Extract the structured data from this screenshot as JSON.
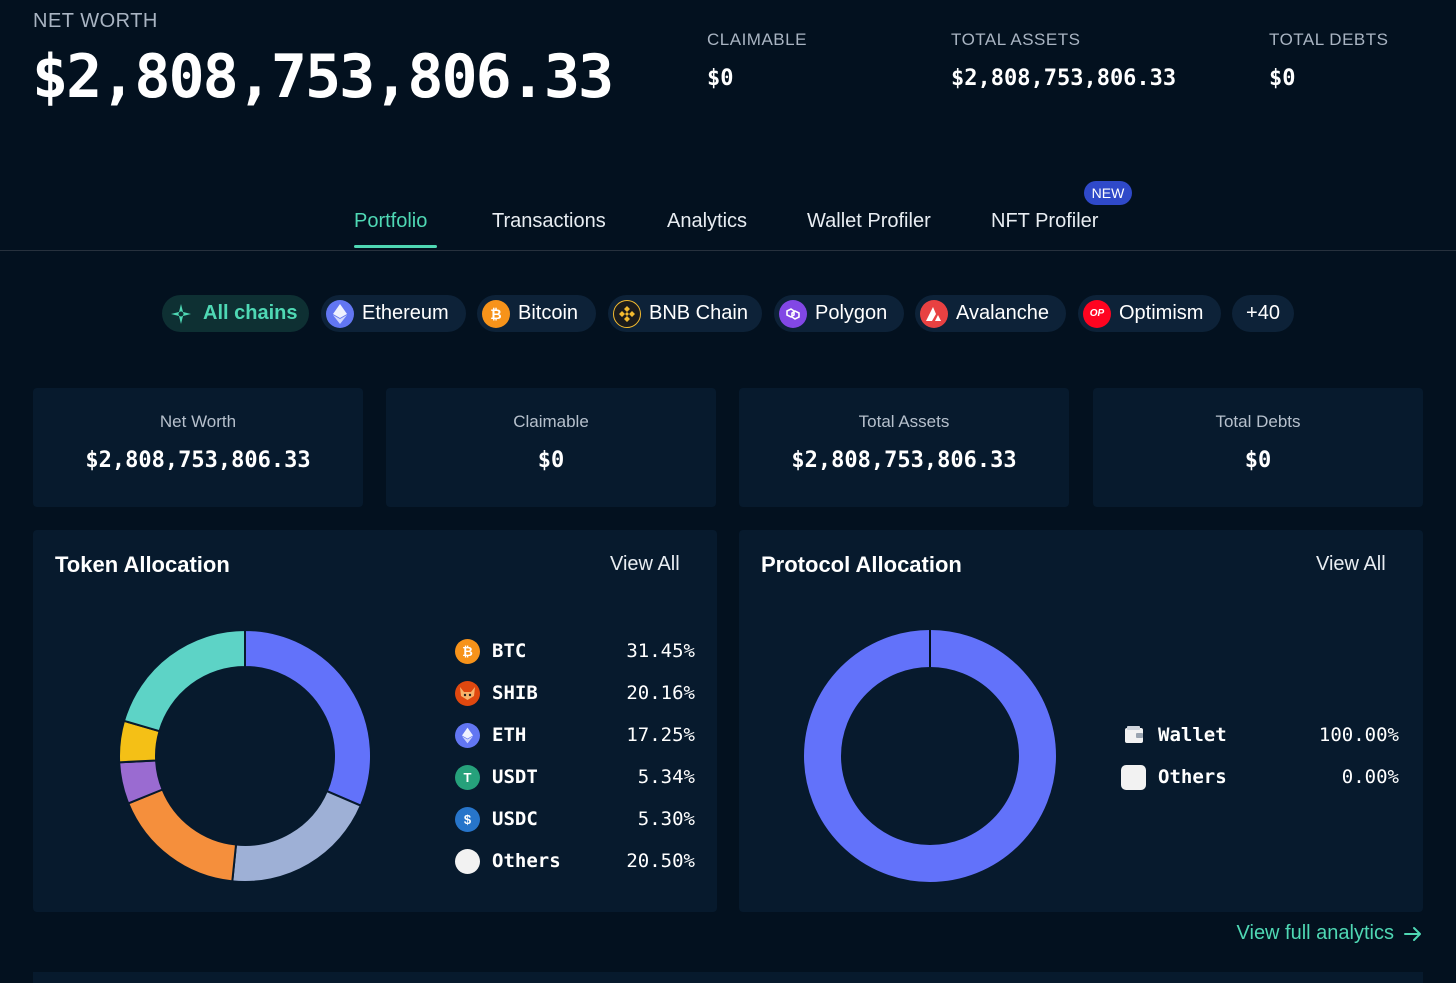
{
  "header": {
    "net_worth_label": "NET WORTH",
    "net_worth_value": "$2,808,753,806.33",
    "claimable_label": "CLAIMABLE",
    "claimable_value": "$0",
    "total_assets_label": "TOTAL ASSETS",
    "total_assets_value": "$2,808,753,806.33",
    "total_debts_label": "TOTAL DEBTS",
    "total_debts_value": "$0"
  },
  "tabs": [
    {
      "label": "Portfolio",
      "active": true
    },
    {
      "label": "Transactions"
    },
    {
      "label": "Analytics"
    },
    {
      "label": "Wallet Profiler"
    },
    {
      "label": "NFT Profiler",
      "badge": "NEW"
    }
  ],
  "chains": [
    {
      "label": "All chains",
      "icon": "all-chains-icon",
      "color": "#4fd8b4",
      "active": true
    },
    {
      "label": "Ethereum",
      "icon": "ethereum-icon",
      "color": "#6276f2"
    },
    {
      "label": "Bitcoin",
      "icon": "bitcoin-icon",
      "color": "#f7931a"
    },
    {
      "label": "BNB Chain",
      "icon": "bnb-icon",
      "color": "#f3ba2f"
    },
    {
      "label": "Polygon",
      "icon": "polygon-icon",
      "color": "#8247e5"
    },
    {
      "label": "Avalanche",
      "icon": "avalanche-icon",
      "color": "#e84142"
    },
    {
      "label": "Optimism",
      "icon": "optimism-icon",
      "color": "#ff0420",
      "icon_text": "OP"
    },
    {
      "label": "+40"
    }
  ],
  "summary": [
    {
      "label": "Net Worth",
      "value": "$2,808,753,806.33"
    },
    {
      "label": "Claimable",
      "value": "$0"
    },
    {
      "label": "Total Assets",
      "value": "$2,808,753,806.33"
    },
    {
      "label": "Total Debts",
      "value": "$0"
    }
  ],
  "token_allocation": {
    "title": "Token Allocation",
    "view_all": "View All",
    "items": [
      {
        "symbol": "BTC",
        "percent": "31.45%",
        "icon": "bitcoin-icon",
        "color": "#f7931a"
      },
      {
        "symbol": "SHIB",
        "percent": "20.16%",
        "icon": "shib-icon",
        "color": "#e0480f"
      },
      {
        "symbol": "ETH",
        "percent": "17.25%",
        "icon": "ethereum-icon",
        "color": "#6276f2"
      },
      {
        "symbol": "USDT",
        "percent": "5.34%",
        "icon": "tether-icon",
        "color": "#26a17b"
      },
      {
        "symbol": "USDC",
        "percent": "5.30%",
        "icon": "usdc-icon",
        "color": "#2775ca"
      },
      {
        "symbol": "Others",
        "percent": "20.50%",
        "icon": "others-icon",
        "color": "#f2f2f2"
      }
    ]
  },
  "protocol_allocation": {
    "title": "Protocol Allocation",
    "view_all": "View All",
    "items": [
      {
        "name": "Wallet",
        "percent": "100.00%",
        "icon": "wallet-icon"
      },
      {
        "name": "Others",
        "percent": "0.00%",
        "icon": "others-icon"
      }
    ]
  },
  "footer": {
    "view_full_analytics": "View full analytics"
  },
  "chart_data": [
    {
      "type": "pie",
      "title": "Token Allocation",
      "categories": [
        "BTC",
        "SHIB",
        "ETH",
        "USDT",
        "USDC",
        "Others"
      ],
      "values": [
        31.45,
        20.16,
        17.25,
        5.34,
        5.3,
        20.5
      ],
      "colors": [
        "#6272fa",
        "#9eb0d6",
        "#f58f3c",
        "#9a6bd1",
        "#f4c016",
        "#5dd3c6"
      ]
    },
    {
      "type": "pie",
      "title": "Protocol Allocation",
      "categories": [
        "Wallet",
        "Others"
      ],
      "values": [
        100.0,
        0.0
      ],
      "colors": [
        "#6272fa",
        "#03111f"
      ]
    }
  ]
}
